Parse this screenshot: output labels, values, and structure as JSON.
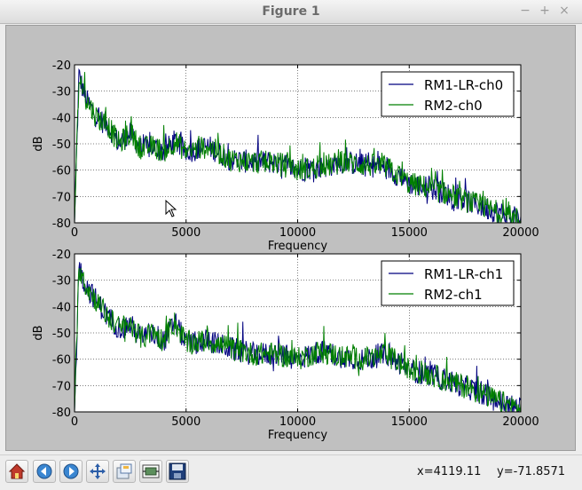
{
  "window": {
    "title": "Figure 1",
    "controls": [
      "−",
      "+",
      "×"
    ]
  },
  "toolbar": {
    "icons": [
      "home-icon",
      "back-arrow-icon",
      "forward-arrow-icon",
      "pan-icon",
      "zoom-rect-icon",
      "subplots-icon",
      "save-icon"
    ],
    "x_readout": "x=4119.11",
    "y_readout": "y=-71.8571"
  },
  "chart_data": [
    {
      "type": "line",
      "xlabel": "Frequency",
      "ylabel": "dB",
      "xlim": [
        0,
        20000
      ],
      "ylim": [
        -80,
        -20
      ],
      "xticks": [
        "0",
        "5000",
        "10000",
        "15000",
        "20000"
      ],
      "yticks": [
        "-20",
        "-30",
        "-40",
        "-50",
        "-60",
        "-70",
        "-80"
      ],
      "grid": true,
      "legend_position": "top-right",
      "series": [
        {
          "name": "RM1-LR-ch0",
          "color": "#00007f",
          "x": [
            0,
            200,
            500,
            1000,
            1500,
            2000,
            2500,
            3000,
            3500,
            4000,
            4500,
            5000,
            6000,
            7000,
            8000,
            9000,
            10000,
            11000,
            12000,
            13000,
            14000,
            15000,
            16000,
            17000,
            18000,
            19000,
            20000
          ],
          "values": [
            -80,
            -24,
            -33,
            -40,
            -43,
            -50,
            -46,
            -52,
            -51,
            -53,
            -49,
            -53,
            -51,
            -56,
            -57,
            -57,
            -60,
            -59,
            -57,
            -58,
            -59,
            -65,
            -67,
            -70,
            -73,
            -76,
            -79
          ]
        },
        {
          "name": "RM2-ch0",
          "color": "#007f00",
          "x": [
            0,
            200,
            500,
            1000,
            1500,
            2000,
            2500,
            3000,
            3500,
            4000,
            4500,
            5000,
            6000,
            7000,
            8000,
            9000,
            10000,
            11000,
            12000,
            13000,
            14000,
            15000,
            16000,
            17000,
            18000,
            19000,
            20000
          ],
          "values": [
            -80,
            -24,
            -33,
            -40,
            -43,
            -50,
            -46,
            -52,
            -51,
            -53,
            -49,
            -53,
            -51,
            -56,
            -57,
            -57,
            -60,
            -59,
            -57,
            -58,
            -59,
            -65,
            -67,
            -70,
            -73,
            -76,
            -79
          ]
        }
      ]
    },
    {
      "type": "line",
      "xlabel": "Frequency",
      "ylabel": "dB",
      "xlim": [
        0,
        20000
      ],
      "ylim": [
        -80,
        -20
      ],
      "xticks": [
        "0",
        "5000",
        "10000",
        "15000",
        "20000"
      ],
      "yticks": [
        "-20",
        "-30",
        "-40",
        "-50",
        "-60",
        "-70",
        "-80"
      ],
      "grid": true,
      "legend_position": "top-right",
      "series": [
        {
          "name": "RM1-LR-ch1",
          "color": "#00007f",
          "x": [
            0,
            200,
            500,
            1000,
            1500,
            2000,
            2500,
            3000,
            3500,
            4000,
            4500,
            5000,
            6000,
            7000,
            8000,
            9000,
            10000,
            11000,
            12000,
            13000,
            14000,
            15000,
            16000,
            17000,
            18000,
            19000,
            20000
          ],
          "values": [
            -80,
            -25,
            -32,
            -38,
            -44,
            -48,
            -47,
            -52,
            -50,
            -53,
            -46,
            -54,
            -53,
            -56,
            -58,
            -58,
            -60,
            -57,
            -59,
            -60,
            -58,
            -64,
            -66,
            -69,
            -72,
            -76,
            -79
          ]
        },
        {
          "name": "RM2-ch1",
          "color": "#007f00",
          "x": [
            0,
            200,
            500,
            1000,
            1500,
            2000,
            2500,
            3000,
            3500,
            4000,
            4500,
            5000,
            6000,
            7000,
            8000,
            9000,
            10000,
            11000,
            12000,
            13000,
            14000,
            15000,
            16000,
            17000,
            18000,
            19000,
            20000
          ],
          "values": [
            -80,
            -25,
            -32,
            -38,
            -44,
            -48,
            -47,
            -52,
            -50,
            -53,
            -46,
            -54,
            -53,
            -56,
            -58,
            -58,
            -60,
            -57,
            -59,
            -60,
            -58,
            -64,
            -66,
            -69,
            -72,
            -76,
            -79
          ]
        }
      ]
    }
  ]
}
